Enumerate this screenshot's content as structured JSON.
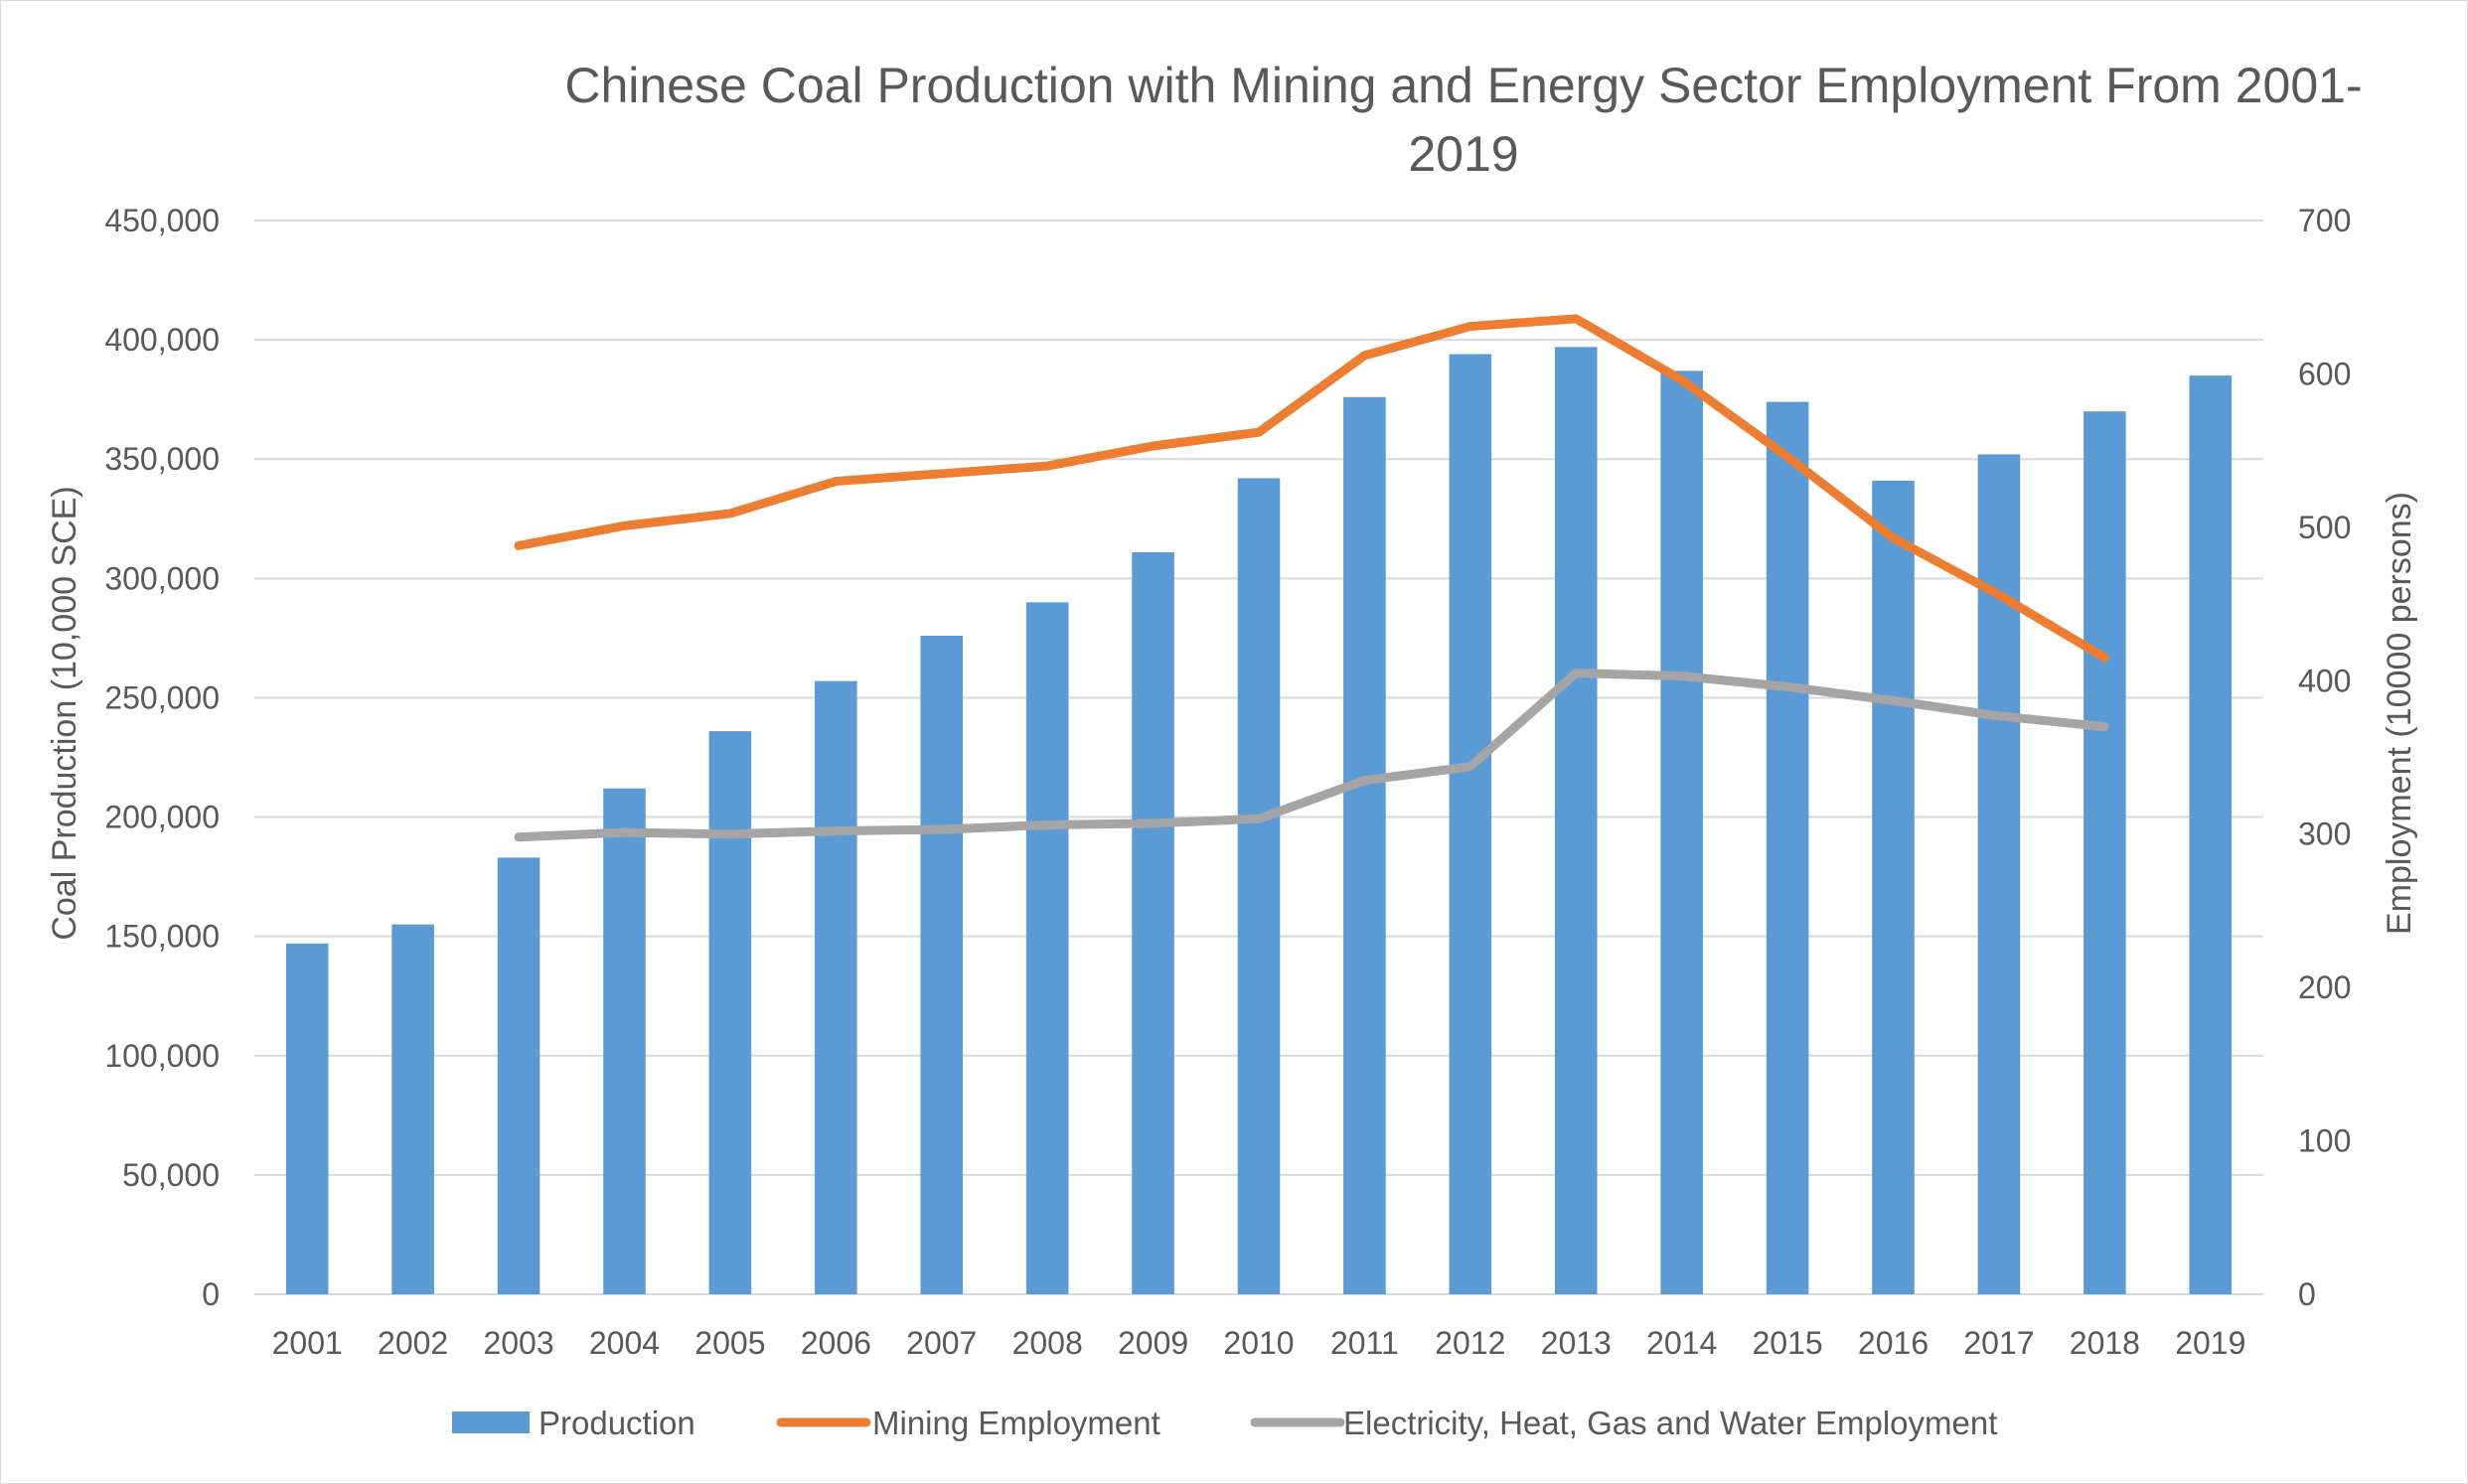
{
  "chart_data": {
    "type": "bar",
    "title_line1": "Chinese Coal Production with Mining and Energy Sector Employment From 2001-",
    "title_line2": "2019",
    "ylabel": "Coal Production (10,000 SCE)",
    "y2label": "Employment (10000 persons)",
    "ylim": [
      0,
      450000
    ],
    "y2lim": [
      0,
      700
    ],
    "yticks": [
      "0",
      "50,000",
      "100,000",
      "150,000",
      "200,000",
      "250,000",
      "300,000",
      "350,000",
      "400,000",
      "450,000"
    ],
    "y2ticks": [
      "0",
      "100",
      "200",
      "300",
      "400",
      "500",
      "600",
      "700"
    ],
    "categories": [
      "2001",
      "2002",
      "2003",
      "2004",
      "2005",
      "2006",
      "2007",
      "2008",
      "2009",
      "2010",
      "2011",
      "2012",
      "2013",
      "2014",
      "2015",
      "2016",
      "2017",
      "2018",
      "2019"
    ],
    "series": [
      {
        "name": "Production",
        "type": "bar",
        "axis": "left",
        "color": "#5b9bd5",
        "values": [
          147000,
          155000,
          183000,
          212000,
          236000,
          257000,
          276000,
          290000,
          311000,
          342000,
          376000,
          394000,
          397000,
          387000,
          374000,
          341000,
          352000,
          370000,
          385000
        ]
      },
      {
        "name": "Mining Employment",
        "type": "line",
        "axis": "right",
        "color": "#ed7d31",
        "values": [
          null,
          null,
          488,
          501,
          509,
          530,
          535,
          540,
          553,
          562,
          612,
          631,
          636,
          596,
          546,
          493,
          456,
          415,
          null
        ]
      },
      {
        "name": "Electricity, Heat, Gas and Water Employment",
        "type": "line",
        "axis": "right",
        "color": "#a5a5a5",
        "values": [
          null,
          null,
          298,
          301,
          300,
          302,
          303,
          306,
          307,
          310,
          335,
          344,
          405,
          403,
          396,
          387,
          377,
          370,
          null
        ]
      }
    ],
    "legend_position": "bottom"
  }
}
